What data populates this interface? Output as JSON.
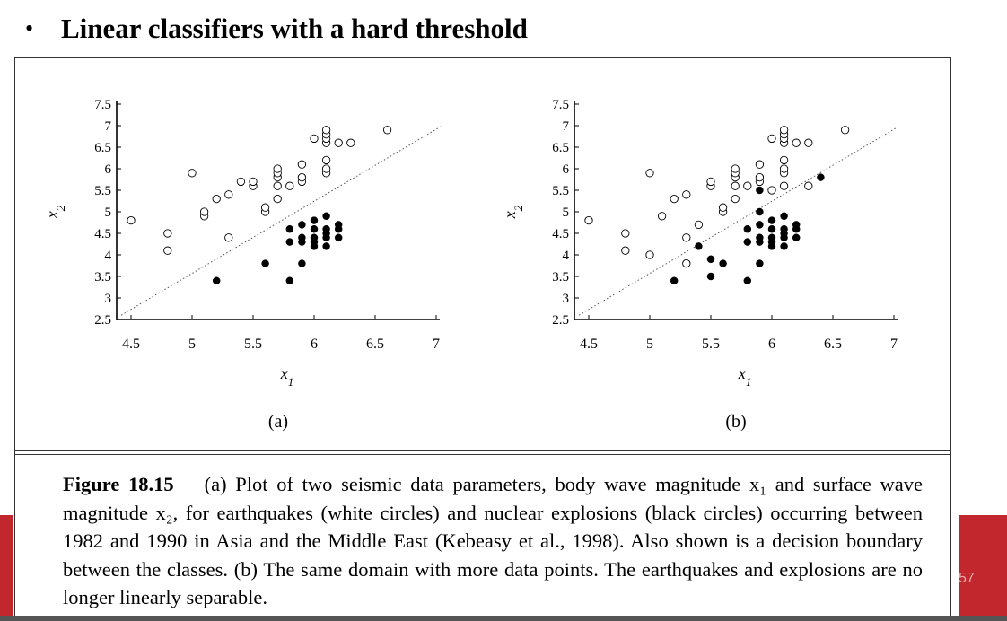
{
  "slide": {
    "bullet": "•",
    "title": "Linear classifiers with a hard threshold",
    "page_number": "57"
  },
  "caption": {
    "label": "Figure 18.15",
    "text": "(a) Plot of two seismic data parameters, body wave magnitude x₁ and surface wave magnitude x₂, for earthquakes (white circles) and nuclear explosions (black circles) occurring between 1982 and 1990 in Asia and the Middle East (Kebeasy et al., 1998). Also shown is a decision boundary between the classes. (b) The same domain with more data points. The earthquakes and explosions are no longer linearly separable."
  },
  "colors": {
    "accent_red": "#c1272d",
    "frame": "#333333"
  },
  "chart_data": [
    {
      "type": "scatter",
      "panel_label": "(a)",
      "xlabel": "x1",
      "ylabel": "x2",
      "xlim": [
        4.5,
        7
      ],
      "ylim": [
        2.5,
        7.5
      ],
      "x_ticks": [
        "4.5",
        "5",
        "5.5",
        "6",
        "6.5",
        "7"
      ],
      "y_ticks": [
        "7.5",
        "7",
        "6.5",
        "6",
        "5.5",
        "5",
        "4.5",
        "4",
        "3.5",
        "3",
        "2.5"
      ],
      "decision_boundary": {
        "style": "dotted",
        "points": [
          [
            4.42,
            2.6
          ],
          [
            7.05,
            7.0
          ]
        ]
      },
      "series": [
        {
          "name": "earthquakes",
          "marker": "open-circle",
          "points": [
            [
              4.5,
              4.8
            ],
            [
              4.8,
              4.5
            ],
            [
              4.8,
              4.1
            ],
            [
              5.0,
              5.9
            ],
            [
              5.1,
              4.9
            ],
            [
              5.1,
              5.0
            ],
            [
              5.2,
              5.3
            ],
            [
              5.3,
              4.4
            ],
            [
              5.3,
              5.4
            ],
            [
              5.4,
              5.7
            ],
            [
              5.5,
              5.6
            ],
            [
              5.5,
              5.7
            ],
            [
              5.6,
              5.0
            ],
            [
              5.6,
              5.1
            ],
            [
              5.7,
              5.3
            ],
            [
              5.7,
              5.6
            ],
            [
              5.7,
              5.8
            ],
            [
              5.7,
              5.9
            ],
            [
              5.7,
              6.0
            ],
            [
              5.8,
              5.6
            ],
            [
              5.9,
              5.7
            ],
            [
              5.9,
              5.8
            ],
            [
              5.9,
              6.1
            ],
            [
              6.0,
              6.7
            ],
            [
              6.1,
              5.9
            ],
            [
              6.1,
              6.0
            ],
            [
              6.1,
              6.2
            ],
            [
              6.1,
              6.6
            ],
            [
              6.1,
              6.7
            ],
            [
              6.1,
              6.8
            ],
            [
              6.1,
              6.9
            ],
            [
              6.2,
              6.6
            ],
            [
              6.3,
              6.6
            ],
            [
              6.6,
              6.9
            ]
          ]
        },
        {
          "name": "nuclear explosions",
          "marker": "filled-circle",
          "points": [
            [
              5.2,
              3.4
            ],
            [
              5.6,
              3.8
            ],
            [
              5.8,
              3.4
            ],
            [
              5.8,
              4.3
            ],
            [
              5.8,
              4.6
            ],
            [
              5.9,
              3.8
            ],
            [
              5.9,
              4.3
            ],
            [
              5.9,
              4.4
            ],
            [
              5.9,
              4.7
            ],
            [
              6.0,
              4.2
            ],
            [
              6.0,
              4.3
            ],
            [
              6.0,
              4.4
            ],
            [
              6.0,
              4.6
            ],
            [
              6.0,
              4.8
            ],
            [
              6.1,
              4.2
            ],
            [
              6.1,
              4.4
            ],
            [
              6.1,
              4.5
            ],
            [
              6.1,
              4.6
            ],
            [
              6.1,
              4.9
            ],
            [
              6.2,
              4.4
            ],
            [
              6.2,
              4.6
            ],
            [
              6.2,
              4.7
            ]
          ]
        }
      ]
    },
    {
      "type": "scatter",
      "panel_label": "(b)",
      "xlabel": "x1",
      "ylabel": "x2",
      "xlim": [
        4.5,
        7
      ],
      "ylim": [
        2.5,
        7.5
      ],
      "x_ticks": [
        "4.5",
        "5",
        "5.5",
        "6",
        "6.5",
        "7"
      ],
      "y_ticks": [
        "7.5",
        "7",
        "6.5",
        "6",
        "5.5",
        "5",
        "4.5",
        "4",
        "3.5",
        "3",
        "2.5"
      ],
      "decision_boundary": {
        "style": "dotted",
        "points": [
          [
            4.42,
            2.6
          ],
          [
            7.05,
            7.0
          ]
        ]
      },
      "series": [
        {
          "name": "earthquakes",
          "marker": "open-circle",
          "points": [
            [
              4.5,
              4.8
            ],
            [
              4.8,
              4.5
            ],
            [
              4.8,
              4.1
            ],
            [
              5.0,
              4.0
            ],
            [
              5.0,
              5.9
            ],
            [
              5.1,
              4.9
            ],
            [
              5.2,
              5.3
            ],
            [
              5.3,
              3.8
            ],
            [
              5.3,
              4.4
            ],
            [
              5.3,
              5.4
            ],
            [
              5.4,
              4.7
            ],
            [
              5.5,
              5.6
            ],
            [
              5.5,
              5.7
            ],
            [
              5.6,
              5.0
            ],
            [
              5.6,
              5.1
            ],
            [
              5.7,
              5.3
            ],
            [
              5.7,
              5.6
            ],
            [
              5.7,
              5.8
            ],
            [
              5.7,
              5.9
            ],
            [
              5.7,
              6.0
            ],
            [
              5.8,
              5.6
            ],
            [
              5.9,
              5.7
            ],
            [
              5.9,
              5.8
            ],
            [
              5.9,
              6.1
            ],
            [
              6.0,
              5.5
            ],
            [
              6.0,
              6.7
            ],
            [
              6.1,
              5.6
            ],
            [
              6.1,
              5.9
            ],
            [
              6.1,
              6.0
            ],
            [
              6.1,
              6.2
            ],
            [
              6.1,
              6.6
            ],
            [
              6.1,
              6.7
            ],
            [
              6.1,
              6.8
            ],
            [
              6.1,
              6.9
            ],
            [
              6.2,
              6.6
            ],
            [
              6.3,
              5.6
            ],
            [
              6.3,
              6.6
            ],
            [
              6.6,
              6.9
            ]
          ]
        },
        {
          "name": "nuclear explosions",
          "marker": "filled-circle",
          "points": [
            [
              5.2,
              3.4
            ],
            [
              5.4,
              4.2
            ],
            [
              5.5,
              3.5
            ],
            [
              5.5,
              3.9
            ],
            [
              5.6,
              3.8
            ],
            [
              5.8,
              3.4
            ],
            [
              5.8,
              4.3
            ],
            [
              5.8,
              4.6
            ],
            [
              5.9,
              3.8
            ],
            [
              5.9,
              4.3
            ],
            [
              5.9,
              4.4
            ],
            [
              5.9,
              4.7
            ],
            [
              5.9,
              5.0
            ],
            [
              5.9,
              5.5
            ],
            [
              6.0,
              4.2
            ],
            [
              6.0,
              4.3
            ],
            [
              6.0,
              4.4
            ],
            [
              6.0,
              4.6
            ],
            [
              6.0,
              4.8
            ],
            [
              6.1,
              4.2
            ],
            [
              6.1,
              4.4
            ],
            [
              6.1,
              4.5
            ],
            [
              6.1,
              4.6
            ],
            [
              6.1,
              4.9
            ],
            [
              6.2,
              4.4
            ],
            [
              6.2,
              4.6
            ],
            [
              6.2,
              4.7
            ],
            [
              6.4,
              5.8
            ]
          ]
        }
      ]
    }
  ]
}
